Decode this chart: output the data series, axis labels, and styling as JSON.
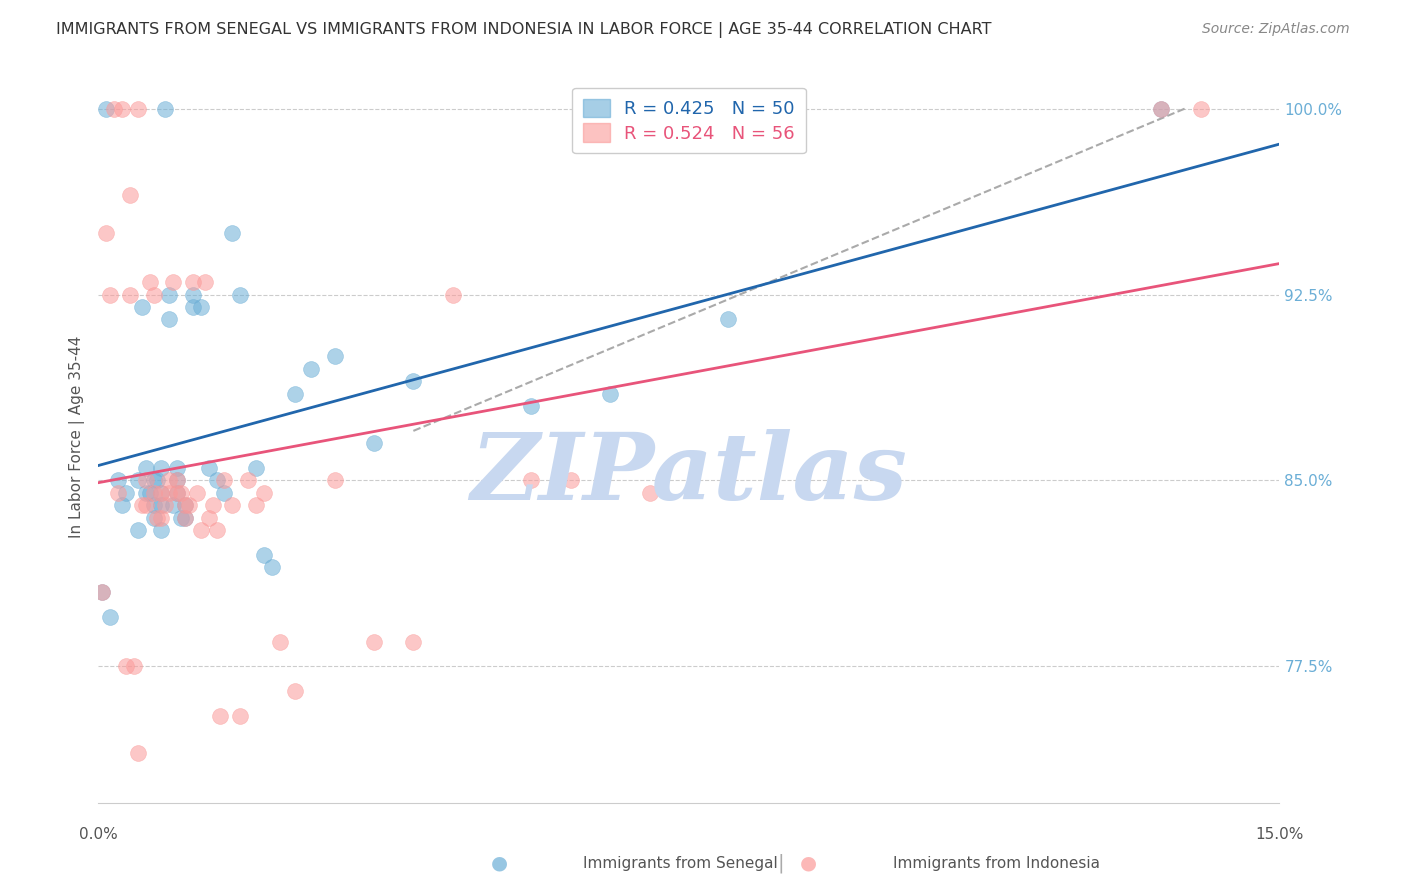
{
  "title": "IMMIGRANTS FROM SENEGAL VS IMMIGRANTS FROM INDONESIA IN LABOR FORCE | AGE 35-44 CORRELATION CHART",
  "source": "Source: ZipAtlas.com",
  "ylabel": "In Labor Force | Age 35-44",
  "right_yticks": [
    77.5,
    85.0,
    92.5,
    100.0
  ],
  "right_ytick_labels": [
    "77.5%",
    "85.0%",
    "92.5%",
    "100.0%"
  ],
  "xmin": 0.0,
  "xmax": 15.0,
  "ymin": 72.0,
  "ymax": 101.5,
  "watermark": "ZIPatlas",
  "watermark_color": "#c8d8f0",
  "senegal_color": "#6baed6",
  "indonesia_color": "#fb9a99",
  "senegal_trend_color": "#2166ac",
  "indonesia_trend_color": "#e8547a",
  "gray_dash_color": "#aaaaaa",
  "grid_color": "#cccccc",
  "title_color": "#333333",
  "source_color": "#888888",
  "axis_label_color": "#555555",
  "right_tick_color": "#6baed6",
  "senegal_x": [
    0.1,
    0.3,
    0.5,
    0.5,
    0.6,
    0.6,
    0.7,
    0.7,
    0.7,
    0.8,
    0.8,
    0.8,
    0.8,
    0.9,
    0.9,
    1.0,
    1.0,
    1.0,
    1.1,
    1.1,
    1.2,
    1.2,
    1.3,
    1.4,
    1.5,
    1.6,
    1.7,
    1.8,
    2.0,
    2.1,
    2.2,
    2.5,
    2.7,
    3.0,
    3.5,
    4.0,
    5.5,
    6.5,
    8.0,
    13.5,
    0.05,
    0.15,
    0.25,
    0.35,
    0.55,
    0.65,
    0.75,
    0.85,
    0.95,
    1.05
  ],
  "senegal_y": [
    100.0,
    84.0,
    85.0,
    83.0,
    85.5,
    84.5,
    85.0,
    84.0,
    83.5,
    85.5,
    84.5,
    84.0,
    83.0,
    92.5,
    91.5,
    85.5,
    85.0,
    84.5,
    84.0,
    83.5,
    92.5,
    92.0,
    92.0,
    85.5,
    85.0,
    84.5,
    95.0,
    92.5,
    85.5,
    82.0,
    81.5,
    88.5,
    89.5,
    90.0,
    86.5,
    89.0,
    88.0,
    88.5,
    91.5,
    100.0,
    80.5,
    79.5,
    85.0,
    84.5,
    92.0,
    84.5,
    85.0,
    100.0,
    84.0,
    83.5
  ],
  "indonesia_x": [
    0.1,
    0.2,
    0.3,
    0.4,
    0.4,
    0.5,
    0.5,
    0.6,
    0.6,
    0.7,
    0.7,
    0.8,
    0.8,
    0.9,
    0.9,
    1.0,
    1.0,
    1.1,
    1.1,
    1.2,
    1.3,
    1.4,
    1.5,
    1.6,
    1.7,
    1.8,
    1.9,
    2.0,
    2.1,
    2.3,
    2.5,
    3.0,
    3.5,
    4.0,
    4.5,
    5.5,
    6.0,
    7.0,
    13.5,
    14.0,
    0.05,
    0.15,
    0.25,
    0.35,
    0.45,
    0.55,
    0.65,
    0.75,
    0.85,
    0.95,
    1.05,
    1.15,
    1.25,
    1.35,
    1.45,
    1.55
  ],
  "indonesia_y": [
    95.0,
    100.0,
    100.0,
    96.5,
    92.5,
    74.0,
    100.0,
    85.0,
    84.0,
    92.5,
    84.5,
    84.5,
    83.5,
    85.0,
    84.5,
    85.0,
    84.5,
    84.0,
    83.5,
    93.0,
    83.0,
    83.5,
    83.0,
    85.0,
    84.0,
    75.5,
    85.0,
    84.0,
    84.5,
    78.5,
    76.5,
    85.0,
    78.5,
    78.5,
    92.5,
    85.0,
    85.0,
    84.5,
    100.0,
    100.0,
    80.5,
    92.5,
    84.5,
    77.5,
    77.5,
    84.0,
    93.0,
    83.5,
    84.0,
    93.0,
    84.5,
    84.0,
    84.5,
    93.0,
    84.0,
    75.5
  ]
}
